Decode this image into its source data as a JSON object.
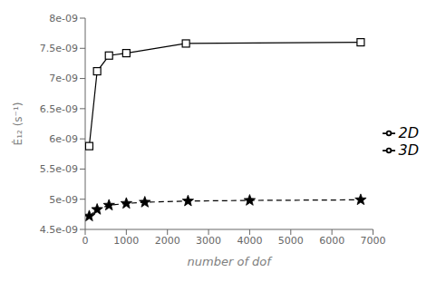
{
  "chart_data": {
    "type": "line",
    "xlabel": "number of dof",
    "ylabel": "Ė₁₂ (s⁻¹)",
    "xlim": [
      0,
      7000
    ],
    "xticks": [
      0,
      1000,
      2000,
      3000,
      4000,
      5000,
      6000,
      7000
    ],
    "ylim": [
      4.5e-09,
      8e-09
    ],
    "yticks": [
      {
        "value": 4.5e-09,
        "label": "4.5e-09"
      },
      {
        "value": 5e-09,
        "label": "5e-09"
      },
      {
        "value": 5.5e-09,
        "label": "5.5e-09"
      },
      {
        "value": 6e-09,
        "label": "6e-09"
      },
      {
        "value": 6.5e-09,
        "label": "6.5e-09"
      },
      {
        "value": 7e-09,
        "label": "7e-09"
      },
      {
        "value": 7.5e-09,
        "label": "7.5e-09"
      },
      {
        "value": 8e-09,
        "label": "8e-09"
      }
    ],
    "grid": false,
    "legend": "right",
    "series": [
      {
        "name": "2D",
        "color": "#000000",
        "marker": "square",
        "line_style": "solid",
        "x": [
          98,
          290,
          578,
          1000,
          2450,
          6700
        ],
        "values": [
          5.88e-09,
          7.12e-09,
          7.38e-09,
          7.42e-09,
          7.58e-09,
          7.6e-09
        ]
      },
      {
        "name": "3D",
        "color": "#000000",
        "marker": "star",
        "line_style": "dashed",
        "x": [
          98,
          290,
          578,
          1000,
          1450,
          2500,
          4000,
          6700
        ],
        "values": [
          4.72e-09,
          4.83e-09,
          4.9e-09,
          4.93e-09,
          4.95e-09,
          4.97e-09,
          4.98e-09,
          4.99e-09
        ]
      }
    ]
  }
}
